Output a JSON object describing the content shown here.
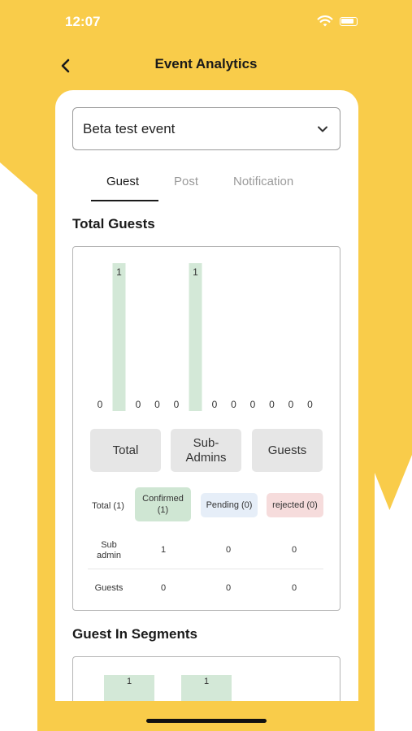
{
  "status_bar": {
    "time": "12:07"
  },
  "header": {
    "title": "Event Analytics"
  },
  "event_select": {
    "value": "Beta test event"
  },
  "tabs": [
    {
      "label": "Guest",
      "active": true
    },
    {
      "label": "Post",
      "active": false
    },
    {
      "label": "Notification",
      "active": false
    }
  ],
  "sections": {
    "total_guests": "Total Guests",
    "guest_in_segments": "Guest In Segments"
  },
  "chart_data": {
    "type": "bar",
    "values": [
      0,
      1,
      0,
      0,
      0,
      1,
      0,
      0,
      0,
      0,
      0,
      0
    ],
    "bar_color": "#d3e8d7",
    "label_color": "#333333"
  },
  "categories": [
    {
      "label": "Total"
    },
    {
      "label": "Sub-\nAdmins"
    },
    {
      "label": "Guests"
    }
  ],
  "summary": {
    "total_label": "Total (1)",
    "confirmed_label": "Confirmed (1)",
    "pending_label": "Pending (0)",
    "rejected_label": "rejected (0)",
    "colors": {
      "confirmed": "#cfe6d3",
      "pending": "#e6eef8",
      "rejected": "#f6dcdc"
    }
  },
  "table": {
    "rows": [
      {
        "label": "Sub\nadmin",
        "confirmed": "1",
        "pending": "0",
        "rejected": "0"
      },
      {
        "label": "Guests",
        "confirmed": "0",
        "pending": "0",
        "rejected": "0"
      }
    ]
  },
  "segments_chart": {
    "labels": [
      "1",
      "1"
    ]
  },
  "colors": {
    "accent": "#F9CC4A"
  }
}
